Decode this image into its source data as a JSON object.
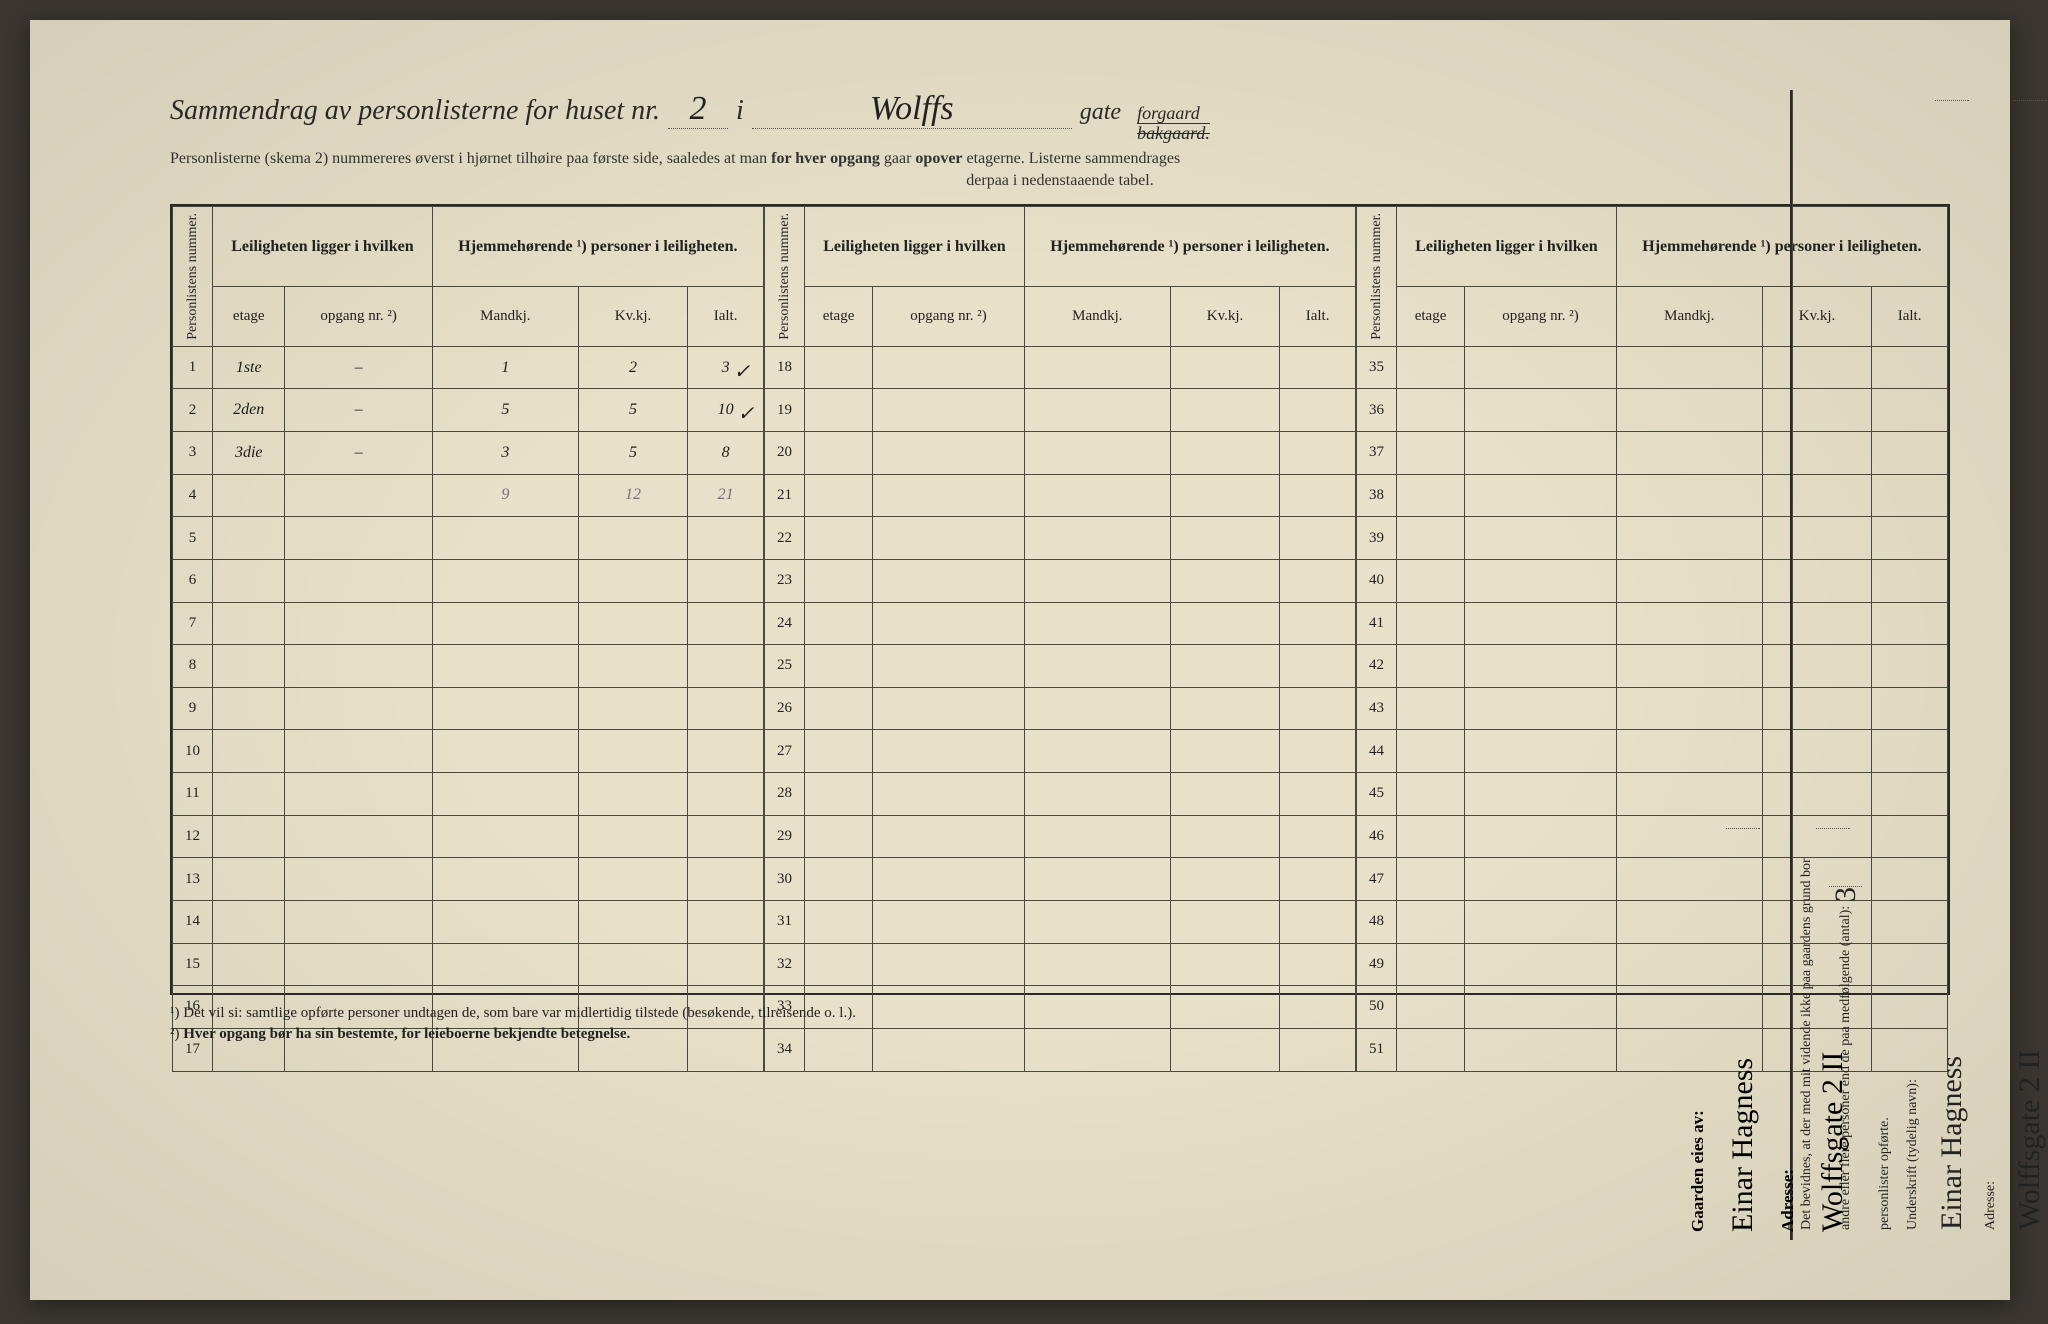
{
  "header": {
    "title_prefix": "Sammendrag av personlisterne for huset nr.",
    "house_nr": "2",
    "i": "i",
    "street": "Wolffs",
    "gate": "gate",
    "forgaard": "forgaard",
    "bakgaard": "bakgaard.",
    "sub1_a": "Personlisterne (skema 2) nummereres øverst i hjørnet tilhøire paa første side, saaledes at man ",
    "sub1_b": "for hver opgang",
    "sub1_c": " gaar ",
    "sub1_d": "opover",
    "sub1_e": " etagerne.  Listerne sammendrages",
    "sub2": "derpaa i nedenstaaende tabel."
  },
  "table": {
    "h_personlistens": "Personlistens nummer.",
    "h_leilighet": "Leiligheten ligger i hvilken",
    "h_hjemme": "Hjemmehørende ¹) personer i leiligheten.",
    "h_etage": "etage",
    "h_opgang": "opgang nr. ²)",
    "h_mandkj": "Mandkj.",
    "h_kvkj": "Kv.kj.",
    "h_ialt": "Ialt.",
    "rows_left": [
      {
        "n": "1",
        "etage": "1ste",
        "opg": "–",
        "m": "1",
        "k": "2",
        "i": "3",
        "chk": true
      },
      {
        "n": "2",
        "etage": "2den",
        "opg": "–",
        "m": "5",
        "k": "5",
        "i": "10",
        "chk": true
      },
      {
        "n": "3",
        "etage": "3die",
        "opg": "–",
        "m": "3",
        "k": "5",
        "i": "8",
        "chk": false
      },
      {
        "n": "4",
        "etage": "",
        "opg": "",
        "m": "9",
        "k": "12",
        "i": "21",
        "chk": false,
        "faded": true
      },
      {
        "n": "5"
      },
      {
        "n": "6"
      },
      {
        "n": "7"
      },
      {
        "n": "8"
      },
      {
        "n": "9"
      },
      {
        "n": "10"
      },
      {
        "n": "11"
      },
      {
        "n": "12"
      },
      {
        "n": "13"
      },
      {
        "n": "14"
      },
      {
        "n": "15"
      },
      {
        "n": "16"
      },
      {
        "n": "17"
      }
    ],
    "rows_mid": [
      {
        "n": "18"
      },
      {
        "n": "19"
      },
      {
        "n": "20"
      },
      {
        "n": "21"
      },
      {
        "n": "22"
      },
      {
        "n": "23"
      },
      {
        "n": "24"
      },
      {
        "n": "25"
      },
      {
        "n": "26"
      },
      {
        "n": "27"
      },
      {
        "n": "28"
      },
      {
        "n": "29"
      },
      {
        "n": "30"
      },
      {
        "n": "31"
      },
      {
        "n": "32"
      },
      {
        "n": "33"
      },
      {
        "n": "34"
      }
    ],
    "rows_right": [
      {
        "n": "35"
      },
      {
        "n": "36"
      },
      {
        "n": "37"
      },
      {
        "n": "38"
      },
      {
        "n": "39"
      },
      {
        "n": "40"
      },
      {
        "n": "41"
      },
      {
        "n": "42"
      },
      {
        "n": "43"
      },
      {
        "n": "44"
      },
      {
        "n": "45"
      },
      {
        "n": "46"
      },
      {
        "n": "47"
      },
      {
        "n": "48"
      },
      {
        "n": "49"
      },
      {
        "n": "50"
      },
      {
        "n": "51"
      }
    ]
  },
  "footnotes": {
    "f1": "¹) Det vil si: samtlige opførte personer undtagen de, som bare var midlertidig tilstede (besøkende, tilreisende o. l.).",
    "f2_a": "²) ",
    "f2_b": "Hver opgang bør ha sin bestemte, for leieboerne bekjendte betegnelse."
  },
  "sidebar": {
    "bevidnes_a": "Det bevidnes, at der med mit vidende ikke paa gaardens grund bor",
    "bevidnes_b": "andre eller flere personer end de paa medfølgende (antal):",
    "antal": "3",
    "bevidnes_c": "personlister opførte.",
    "underskrift_lbl": "Underskrift (tydelig navn):",
    "underskrift": "Einar Hagness",
    "adresse_lbl": "Adresse:",
    "adresse": "Wolffsgate 2 II"
  },
  "owner": {
    "lbl": "Gaarden eies av:",
    "name": "Einar Hagness",
    "adresse_lbl": "Adresse:",
    "adresse": "Wolffsgate 2 II"
  },
  "colors": {
    "paper": "#e8e0c8",
    "ink": "#2a2a2a",
    "border": "#4a4a42",
    "faded_pencil": "#7a6a8a",
    "background": "#3a3530"
  }
}
